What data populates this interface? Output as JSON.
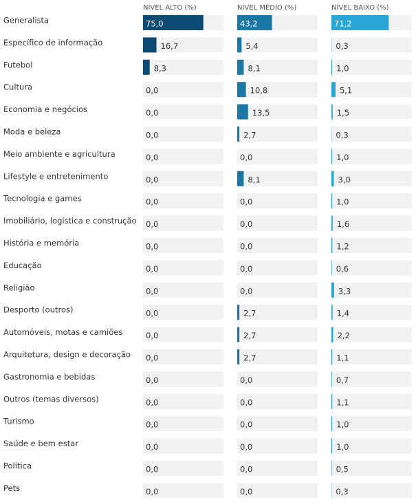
{
  "chart_data": {
    "type": "bar",
    "categories": [
      "Generalista",
      "Específico de informação",
      "Futebol",
      "Cultura",
      "Economia e negócios",
      "Moda e beleza",
      "Meio ambiente e agricultura",
      "Lifestyle e entretenimento",
      "Tecnologia e games",
      "Imobiliário, logística e construção",
      "História e memória",
      "Educação",
      "Religião",
      "Desporto (outros)",
      "Automóveis, motas e camiões",
      "Arquitetura, design e decoração",
      "Gastronomia e bebidas",
      "Outros (temas diversos)",
      "Turismo",
      "Saúde e bem estar",
      "Política",
      "Pets"
    ],
    "xlim": [
      0,
      100
    ],
    "series": [
      {
        "name": "NÍVEL ALTO (%)",
        "color": "#0b4a72",
        "values": [
          75.0,
          16.7,
          8.3,
          0,
          0,
          0,
          0,
          0,
          0,
          0,
          0,
          0,
          0,
          0,
          0,
          0,
          0,
          0,
          0,
          0,
          0,
          0
        ],
        "value_labels": [
          "75,0",
          "16,7",
          "8,3",
          "0,0",
          "0,0",
          "0,0",
          "0,0",
          "0,0",
          "0,0",
          "0,0",
          "0,0",
          "0,0",
          "0,0",
          "0,0",
          "0,0",
          "0,0",
          "0,0",
          "0,0",
          "0,0",
          "0,0",
          "0,0",
          "0,0"
        ]
      },
      {
        "name": "NÍVEL MÉDIO (%)",
        "color": "#1b78a6",
        "values": [
          43.2,
          5.4,
          8.1,
          10.8,
          13.5,
          2.7,
          0,
          8.1,
          0,
          0,
          0,
          0,
          0,
          2.7,
          2.7,
          2.7,
          0,
          0,
          0,
          0,
          0,
          0
        ],
        "value_labels": [
          "43,2",
          "5,4",
          "8,1",
          "10,8",
          "13,5",
          "2,7",
          "0,0",
          "8,1",
          "0,0",
          "0,0",
          "0,0",
          "0,0",
          "0,0",
          "2,7",
          "2,7",
          "2,7",
          "0,0",
          "0,0",
          "0,0",
          "0,0",
          "0,0",
          "0,0"
        ]
      },
      {
        "name": "NÍVEL BAIXO (%)",
        "color": "#2aa6d6",
        "values": [
          71.2,
          0.3,
          1.0,
          5.1,
          1.5,
          0.3,
          1.0,
          3.0,
          1.0,
          1.6,
          1.2,
          0.6,
          3.3,
          1.4,
          2.2,
          1.1,
          0.7,
          1.1,
          1.0,
          1.0,
          0.5,
          0.3
        ],
        "value_labels": [
          "71,2",
          "0,3",
          "1,0",
          "5,1",
          "1,5",
          "0,3",
          "1,0",
          "3,0",
          "1,0",
          "1,6",
          "1,2",
          "0,6",
          "3,3",
          "1,4",
          "2,2",
          "1,1",
          "0,7",
          "1,1",
          "1,0",
          "1,0",
          "0,5",
          "0,3"
        ]
      }
    ]
  }
}
